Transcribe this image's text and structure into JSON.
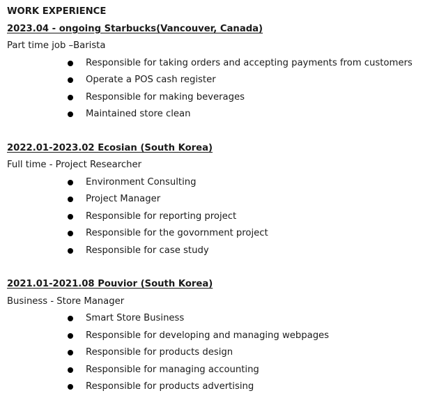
{
  "section_title": "WORK EXPERIENCE",
  "jobs": [
    {
      "title": "2023.04 - ongoing Starbucks(Vancouver, Canada)",
      "role": "Part time job –Barista",
      "items": [
        "Responsible for taking orders and accepting payments from customers",
        "Operate a POS cash register",
        "Responsible for making beverages",
        "Maintained store clean"
      ]
    },
    {
      "title": "2022.01-2023.02 Ecosian (South Korea)",
      "role": "Full time - Project Researcher",
      "items": [
        "Environment Consulting",
        "Project Manager",
        "Responsible for reporting project",
        "Responsible for the govornment project",
        "Responsible for case study"
      ]
    },
    {
      "title": "2021.01-2021.08 Pouvior (South Korea)",
      "role": "Business - Store Manager",
      "items": [
        "Smart Store Business",
        "Responsible for developing and managing webpages",
        "Responsible for products design",
        "Responsible for managing accounting",
        "Responsible for products advertising"
      ]
    }
  ]
}
